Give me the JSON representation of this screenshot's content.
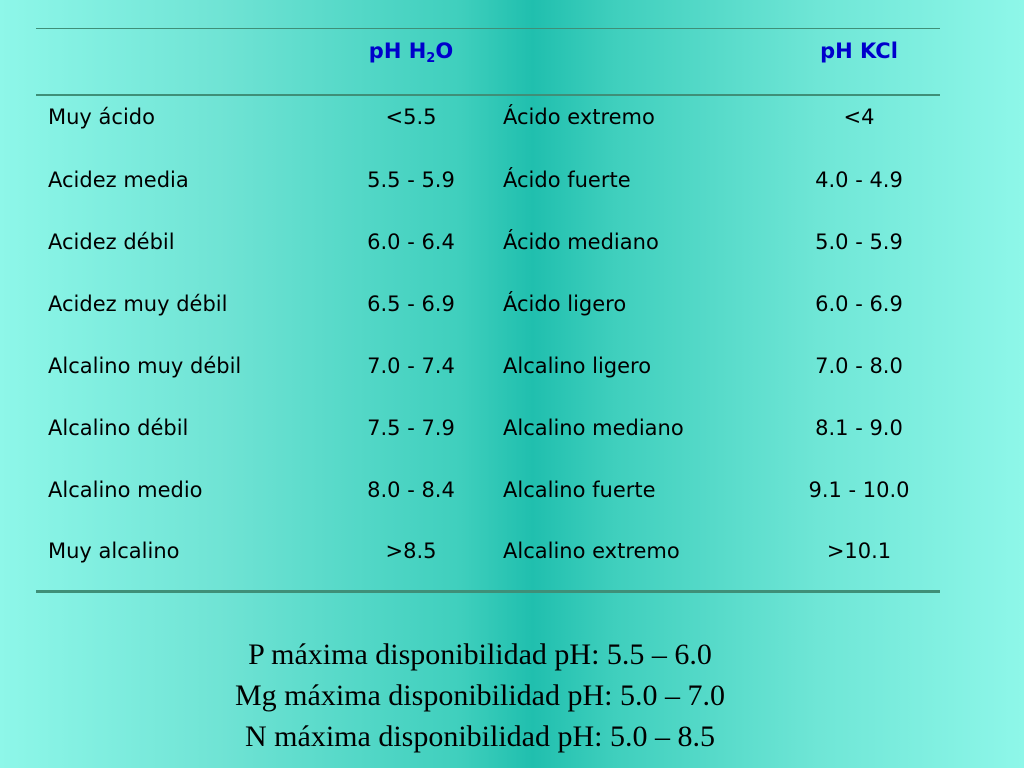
{
  "header": {
    "col2_main": "pH H",
    "col2_sub": "2",
    "col2_tail": "O",
    "col4": "pH KCl"
  },
  "rows": [
    {
      "c1": "Muy ácido",
      "c2": "<5.5",
      "c3": "Ácido extremo",
      "c4": "<4"
    },
    {
      "c1": "Acidez media",
      "c2": "5.5 - 5.9",
      "c3": "Ácido fuerte",
      "c4": "4.0 - 4.9"
    },
    {
      "c1": "Acidez débil",
      "c2": "6.0 - 6.4",
      "c3": "Ácido mediano",
      "c4": "5.0 - 5.9"
    },
    {
      "c1": "Acidez muy débil",
      "c2": "6.5 - 6.9",
      "c3": "Ácido ligero",
      "c4": "6.0 - 6.9"
    },
    {
      "c1": "Alcalino muy débil",
      "c2": "7.0 - 7.4",
      "c3": "Alcalino ligero",
      "c4": "7.0 - 8.0"
    },
    {
      "c1": "Alcalino débil",
      "c2": "7.5 - 7.9",
      "c3": "Alcalino mediano",
      "c4": "8.1 - 9.0"
    },
    {
      "c1": "Alcalino medio",
      "c2": "8.0 - 8.4",
      "c3": "Alcalino fuerte",
      "c4": "9.1 - 10.0"
    },
    {
      "c1": "Muy alcalino",
      "c2": ">8.5",
      "c3": "Alcalino extremo",
      "c4": ">10.1"
    }
  ],
  "notes": [
    "P máxima disponibilidad pH: 5.5 – 6.0",
    "Mg máxima disponibilidad pH: 5.0 – 7.0",
    "N máxima disponibilidad pH: 5.0 – 8.5"
  ],
  "colors": {
    "header_text": "#0000cc",
    "rule": "#3f8f78",
    "background_edge": "#8ef7e9",
    "background_center": "#20bfae"
  }
}
